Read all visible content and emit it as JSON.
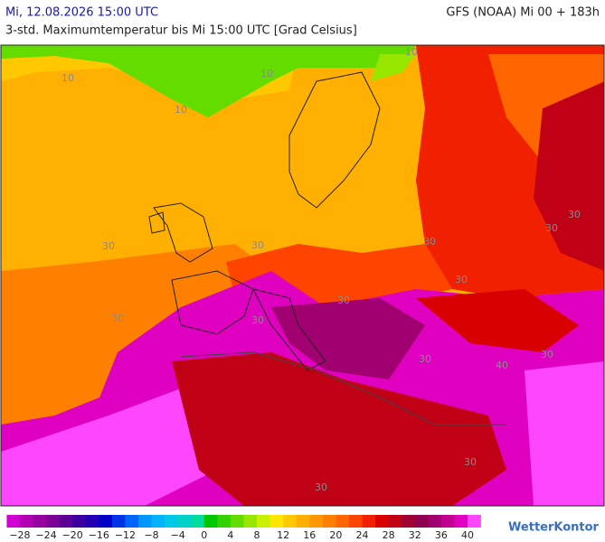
{
  "header": {
    "datetime": "Mi, 12.08.2026 15:00 UTC",
    "model": "GFS (NOAA) Mi 00 + 183h",
    "subtitle": "3-std. Maximumtemperatur bis Mi 15:00 UTC [Grad Celsius]"
  },
  "map": {
    "contour_labels": [
      "10",
      "10",
      "10",
      "10",
      "30",
      "30",
      "30",
      "30",
      "30",
      "30",
      "30",
      "30",
      "30",
      "30",
      "30",
      "30",
      "30",
      "40"
    ]
  },
  "legend": {
    "ticks": [
      "−28",
      "−24",
      "−20",
      "−16",
      "−12",
      "−8",
      "−4",
      "0",
      "4",
      "8",
      "12",
      "16",
      "20",
      "24",
      "28",
      "32",
      "36",
      "40"
    ],
    "colors": [
      "#d200d2",
      "#b400b4",
      "#9600a0",
      "#7a0096",
      "#5c0096",
      "#3c00a0",
      "#2200b4",
      "#0000c8",
      "#0032e6",
      "#0064ff",
      "#0096ff",
      "#00b4ff",
      "#00c8e6",
      "#00d2c8",
      "#00dca0",
      "#00c800",
      "#32d200",
      "#64dc00",
      "#96e600",
      "#c8f000",
      "#ffe600",
      "#ffc800",
      "#ffb000",
      "#ff9800",
      "#ff8000",
      "#ff6600",
      "#ff4400",
      "#f02000",
      "#d80000",
      "#c00014",
      "#a00032",
      "#900050",
      "#a00070",
      "#c00090",
      "#e000c0",
      "#ff46ff"
    ]
  },
  "logo": "WetterKontor"
}
